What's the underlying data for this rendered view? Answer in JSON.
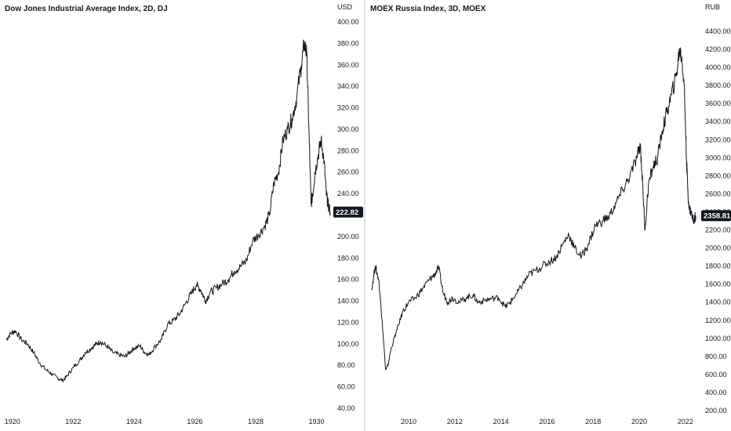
{
  "chart_data": [
    {
      "type": "line",
      "title": "Dow Jones Industrial Average Index, 2D, DJ",
      "unit": "USD",
      "ylim": [
        40,
        400
      ],
      "xlim": [
        1919.8,
        1930.45
      ],
      "y_ticks": [
        "400.00",
        "380.00",
        "360.00",
        "340.00",
        "320.00",
        "300.00",
        "280.00",
        "260.00",
        "240.00",
        "220.00",
        "200.00",
        "180.00",
        "160.00",
        "140.00",
        "120.00",
        "100.00",
        "80.00",
        "60.00",
        "40.00"
      ],
      "x_ticks": [
        "1920",
        "1922",
        "1924",
        "1926",
        "1928",
        "1930"
      ],
      "last_price": "222.82",
      "series": [
        {
          "x": [
            1919.8,
            1919.95,
            1920.1,
            1920.3,
            1920.5,
            1920.7,
            1920.9,
            1921.1,
            1921.3,
            1921.5,
            1921.65,
            1921.8,
            1922.0,
            1922.2,
            1922.4,
            1922.6,
            1922.75,
            1922.9,
            1923.1,
            1923.3,
            1923.5,
            1923.7,
            1923.85,
            1924.0,
            1924.2,
            1924.35,
            1924.5,
            1924.7,
            1924.9,
            1925.1,
            1925.3,
            1925.5,
            1925.7,
            1925.9,
            1926.05,
            1926.2,
            1926.35,
            1926.5,
            1926.7,
            1926.9,
            1927.1,
            1927.3,
            1927.5,
            1927.7,
            1927.9,
            1928.1,
            1928.3,
            1928.45,
            1928.6,
            1928.75,
            1928.9,
            1929.05,
            1929.2,
            1929.35,
            1929.5,
            1929.6,
            1929.68,
            1929.75,
            1929.82,
            1929.88,
            1929.95,
            1930.05,
            1930.15,
            1930.25,
            1930.32,
            1930.38,
            1930.45
          ],
          "y": [
            104,
            110,
            112,
            104,
            100,
            92,
            82,
            76,
            72,
            68,
            66,
            70,
            78,
            84,
            92,
            96,
            100,
            102,
            98,
            92,
            90,
            88,
            92,
            96,
            98,
            92,
            90,
            98,
            104,
            118,
            122,
            128,
            138,
            148,
            155,
            150,
            140,
            148,
            152,
            156,
            160,
            168,
            172,
            178,
            196,
            202,
            210,
            220,
            250,
            260,
            290,
            300,
            310,
            330,
            360,
            380,
            370,
            300,
            230,
            240,
            260,
            275,
            290,
            270,
            240,
            230,
            222.82
          ]
        }
      ]
    },
    {
      "type": "line",
      "title": "MOEX Russia Index, 3D, MOEX",
      "unit": "RUB",
      "ylim": [
        200,
        4500
      ],
      "xlim": [
        2008.4,
        2022.45
      ],
      "y_ticks": [
        "4400.00",
        "4200.00",
        "4000.00",
        "3800.00",
        "3600.00",
        "3400.00",
        "3200.00",
        "3000.00",
        "2800.00",
        "2600.00",
        "2400.00",
        "2200.00",
        "2000.00",
        "1800.00",
        "1600.00",
        "1400.00",
        "1200.00",
        "1000.00",
        "800.00",
        "600.00",
        "400.00",
        "200.00"
      ],
      "x_ticks": [
        "2010",
        "2012",
        "2014",
        "2016",
        "2018",
        "2020",
        "2022"
      ],
      "last_price": "2358.81",
      "series": [
        {
          "x": [
            2008.4,
            2008.55,
            2008.7,
            2008.85,
            2009.0,
            2009.1,
            2009.25,
            2009.5,
            2009.75,
            2010.0,
            2010.3,
            2010.6,
            2010.9,
            2011.1,
            2011.3,
            2011.5,
            2011.7,
            2011.9,
            2012.2,
            2012.5,
            2012.8,
            2013.0,
            2013.3,
            2013.6,
            2013.9,
            2014.2,
            2014.4,
            2014.7,
            2014.95,
            2015.2,
            2015.5,
            2015.8,
            2016.1,
            2016.4,
            2016.7,
            2016.95,
            2017.2,
            2017.5,
            2017.8,
            2018.1,
            2018.4,
            2018.7,
            2019.0,
            2019.3,
            2019.6,
            2019.9,
            2020.05,
            2020.15,
            2020.25,
            2020.4,
            2020.6,
            2020.8,
            2021.0,
            2021.2,
            2021.4,
            2021.6,
            2021.75,
            2021.85,
            2021.95,
            2022.05,
            2022.1,
            2022.15,
            2022.25,
            2022.35,
            2022.45
          ],
          "y": [
            1550,
            1800,
            1650,
            1200,
            650,
            700,
            900,
            1100,
            1300,
            1400,
            1450,
            1550,
            1650,
            1700,
            1780,
            1500,
            1400,
            1450,
            1400,
            1450,
            1480,
            1400,
            1420,
            1440,
            1450,
            1350,
            1400,
            1500,
            1600,
            1700,
            1750,
            1800,
            1850,
            1900,
            2050,
            2150,
            2000,
            1900,
            2050,
            2250,
            2300,
            2350,
            2500,
            2650,
            2800,
            3000,
            3150,
            2700,
            2200,
            2700,
            2900,
            3000,
            3300,
            3500,
            3700,
            3900,
            4200,
            4100,
            3800,
            3000,
            2700,
            2450,
            2400,
            2300,
            2358.81
          ]
        }
      ]
    }
  ]
}
